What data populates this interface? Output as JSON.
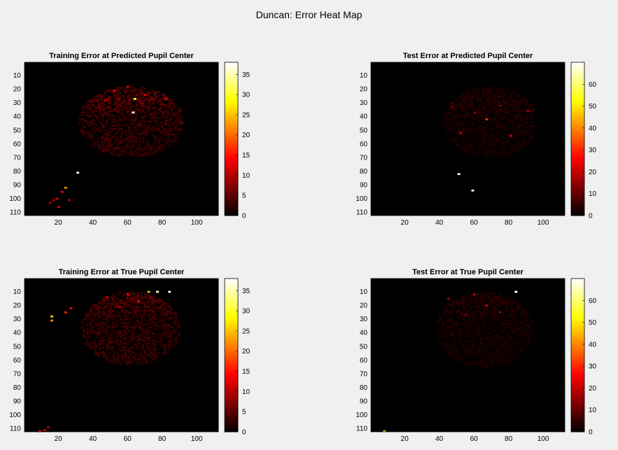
{
  "figure": {
    "suptitle": "Duncan: Error Heat Map"
  },
  "chart_data": [
    {
      "type": "heatmap",
      "title": "Training Error at Predicted Pupil Center",
      "xlim": [
        0,
        112
      ],
      "ylim": [
        0,
        112
      ],
      "xticks": [
        20,
        40,
        60,
        80,
        100
      ],
      "yticks": [
        10,
        20,
        30,
        40,
        50,
        60,
        70,
        80,
        90,
        100,
        110
      ],
      "colormap": "hot",
      "colorbar": {
        "range": [
          0,
          38
        ],
        "ticks": [
          0,
          5,
          10,
          15,
          20,
          25,
          30,
          35
        ]
      },
      "background_value": 0,
      "blob": {
        "rows": [
          18,
          70
        ],
        "cols": [
          32,
          93
        ],
        "peak_row": 28,
        "center_col": 62,
        "max": 7,
        "seed": 11
      },
      "hot_points": [
        {
          "x": 31,
          "y": 81,
          "value": 38
        },
        {
          "x": 63,
          "y": 37,
          "value": 36
        },
        {
          "x": 64,
          "y": 27,
          "value": 30
        },
        {
          "x": 24,
          "y": 92,
          "value": 22
        },
        {
          "x": 22,
          "y": 95,
          "value": 14
        },
        {
          "x": 19,
          "y": 100,
          "value": 12
        },
        {
          "x": 17,
          "y": 101,
          "value": 10
        },
        {
          "x": 20,
          "y": 106,
          "value": 13
        },
        {
          "x": 15,
          "y": 103,
          "value": 9
        },
        {
          "x": 26,
          "y": 101,
          "value": 10
        },
        {
          "x": 52,
          "y": 21,
          "value": 14
        },
        {
          "x": 60,
          "y": 18,
          "value": 11
        },
        {
          "x": 70,
          "y": 24,
          "value": 12
        },
        {
          "x": 82,
          "y": 27,
          "value": 13
        },
        {
          "x": 47,
          "y": 28,
          "value": 11
        }
      ]
    },
    {
      "type": "heatmap",
      "title": "Test Error at Predicted Pupil Center",
      "xlim": [
        0,
        112
      ],
      "ylim": [
        0,
        112
      ],
      "xticks": [
        20,
        40,
        60,
        80,
        100
      ],
      "yticks": [
        10,
        20,
        30,
        40,
        50,
        60,
        70,
        80,
        90,
        100,
        110
      ],
      "colormap": "hot",
      "colorbar": {
        "range": [
          0,
          70
        ],
        "ticks": [
          0,
          10,
          20,
          30,
          40,
          50,
          60
        ]
      },
      "background_value": 0,
      "blob": {
        "rows": [
          18,
          70
        ],
        "cols": [
          40,
          95
        ],
        "peak_row": 30,
        "center_col": 70,
        "max": 6,
        "seed": 23
      },
      "hot_points": [
        {
          "x": 51,
          "y": 82,
          "value": 68
        },
        {
          "x": 59,
          "y": 94,
          "value": 70
        },
        {
          "x": 67,
          "y": 42,
          "value": 30
        },
        {
          "x": 52,
          "y": 52,
          "value": 20
        },
        {
          "x": 81,
          "y": 54,
          "value": 22
        },
        {
          "x": 91,
          "y": 36,
          "value": 18
        },
        {
          "x": 75,
          "y": 32,
          "value": 16
        },
        {
          "x": 60,
          "y": 37,
          "value": 14
        },
        {
          "x": 47,
          "y": 33,
          "value": 12
        }
      ]
    },
    {
      "type": "heatmap",
      "title": "Training Error at True Pupil Center",
      "xlim": [
        0,
        112
      ],
      "ylim": [
        0,
        112
      ],
      "xticks": [
        20,
        40,
        60,
        80,
        100
      ],
      "yticks": [
        10,
        20,
        30,
        40,
        50,
        60,
        70,
        80,
        90,
        100,
        110
      ],
      "colormap": "hot",
      "colorbar": {
        "range": [
          0,
          38
        ],
        "ticks": [
          0,
          5,
          10,
          15,
          20,
          25,
          30,
          35
        ]
      },
      "background_value": 0,
      "blob": {
        "rows": [
          10,
          64
        ],
        "cols": [
          33,
          90
        ],
        "peak_row": 15,
        "center_col": 62,
        "max": 7,
        "seed": 37
      },
      "hot_points": [
        {
          "x": 77,
          "y": 10,
          "value": 36
        },
        {
          "x": 84,
          "y": 10,
          "value": 38
        },
        {
          "x": 72,
          "y": 10,
          "value": 24
        },
        {
          "x": 16,
          "y": 28,
          "value": 26
        },
        {
          "x": 16,
          "y": 31,
          "value": 22
        },
        {
          "x": 24,
          "y": 25,
          "value": 16
        },
        {
          "x": 27,
          "y": 22,
          "value": 14
        },
        {
          "x": 9,
          "y": 112,
          "value": 16
        },
        {
          "x": 12,
          "y": 111,
          "value": 12
        },
        {
          "x": 14,
          "y": 109,
          "value": 10
        },
        {
          "x": 60,
          "y": 12,
          "value": 14
        },
        {
          "x": 66,
          "y": 17,
          "value": 13
        },
        {
          "x": 55,
          "y": 21,
          "value": 11
        },
        {
          "x": 48,
          "y": 14,
          "value": 12
        }
      ]
    },
    {
      "type": "heatmap",
      "title": "Test Error at True Pupil Center",
      "xlim": [
        0,
        112
      ],
      "ylim": [
        0,
        112
      ],
      "xticks": [
        20,
        40,
        60,
        80,
        100
      ],
      "yticks": [
        10,
        20,
        30,
        40,
        50,
        60,
        70,
        80,
        90,
        100,
        110
      ],
      "colormap": "hot",
      "colorbar": {
        "range": [
          0,
          70
        ],
        "ticks": [
          0,
          10,
          20,
          30,
          40,
          50,
          60
        ]
      },
      "background_value": 0,
      "blob": {
        "rows": [
          10,
          66
        ],
        "cols": [
          38,
          94
        ],
        "peak_row": 18,
        "center_col": 66,
        "max": 6,
        "seed": 51
      },
      "hot_points": [
        {
          "x": 84,
          "y": 10,
          "value": 70
        },
        {
          "x": 8,
          "y": 112,
          "value": 50
        },
        {
          "x": 67,
          "y": 20,
          "value": 22
        },
        {
          "x": 60,
          "y": 12,
          "value": 20
        },
        {
          "x": 45,
          "y": 15,
          "value": 16
        },
        {
          "x": 75,
          "y": 25,
          "value": 14
        },
        {
          "x": 55,
          "y": 27,
          "value": 12
        }
      ]
    }
  ]
}
